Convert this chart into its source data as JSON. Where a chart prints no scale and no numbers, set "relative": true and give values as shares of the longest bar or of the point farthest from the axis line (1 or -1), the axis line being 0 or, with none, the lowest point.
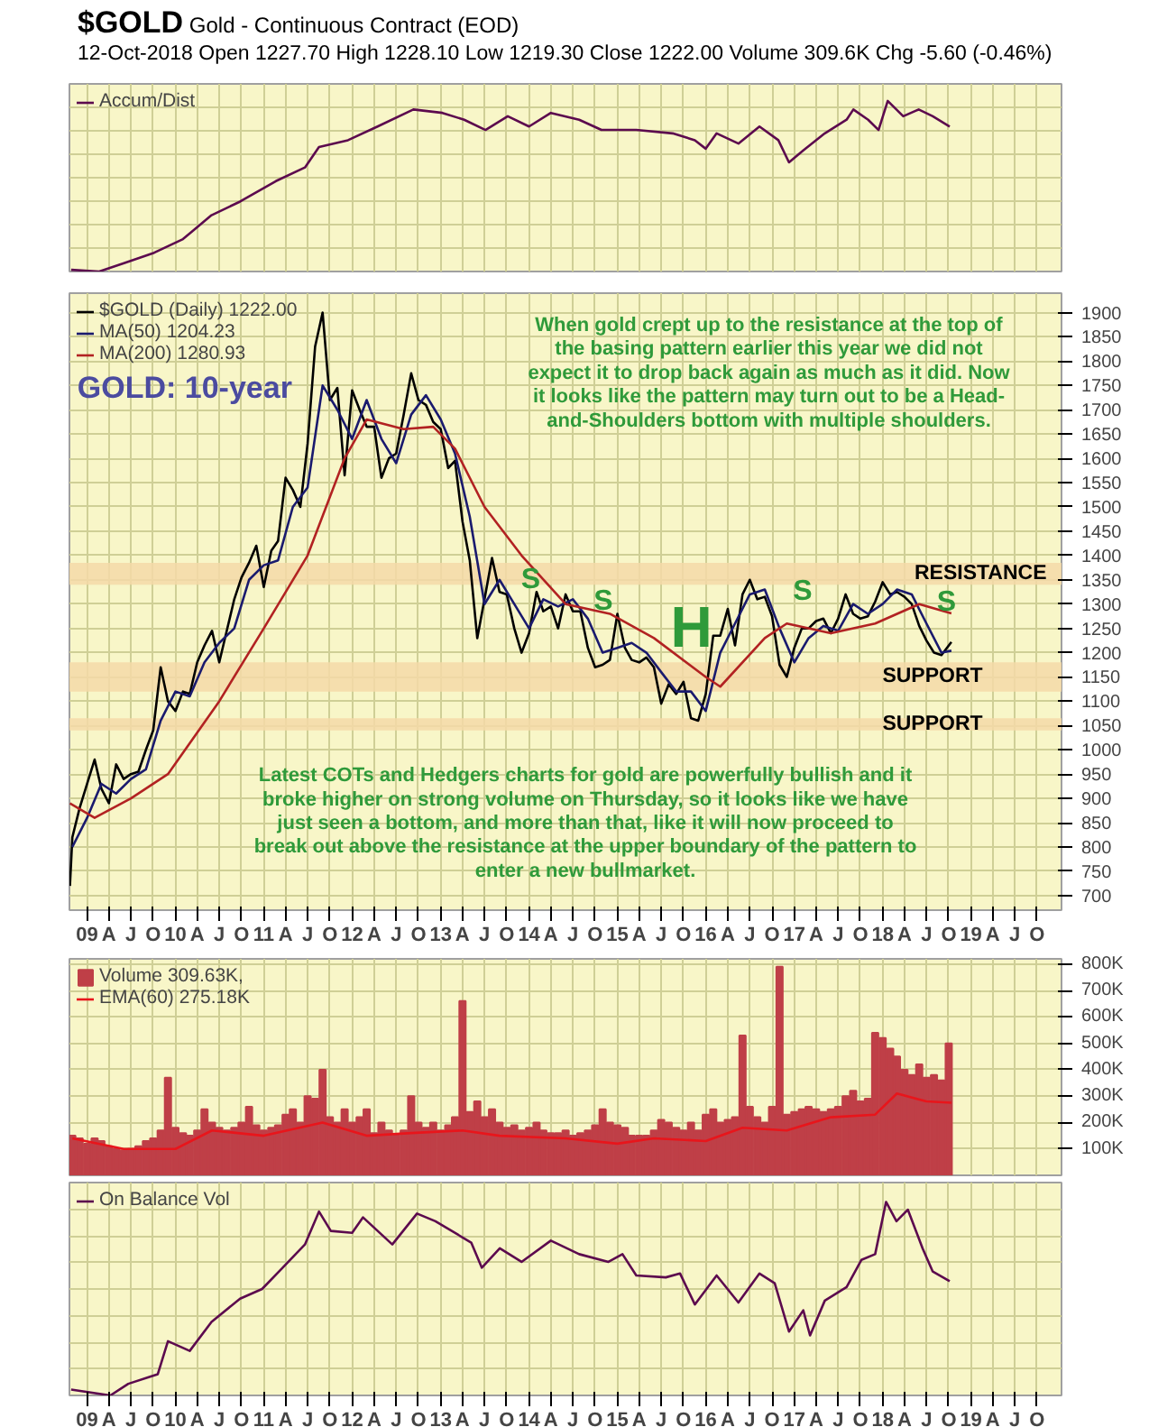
{
  "chart_data": [
    {
      "type": "line",
      "title": "$GOLD",
      "subtitle": "Gold - Continuous Contract (EOD)",
      "annotations": [
        "12-Oct-2018   Open 1227.70  High 1228.10  Low 1219.30  Close 1222.00  Volume 309.6K  Chg -5.60 (-0.46%)"
      ],
      "relative": true,
      "grid": true,
      "legend": "top left",
      "tick_labels": false,
      "xlim": [
        "2008-10-20",
        "2020-01-10"
      ],
      "xticks": [
        {
          "value": "2009-01",
          "label": "09"
        },
        {
          "value": "2009-04",
          "label": "A"
        },
        {
          "value": "2009-07",
          "label": "J"
        },
        {
          "value": "2009-10",
          "label": "O"
        },
        {
          "value": "2010-01",
          "label": "10"
        },
        {
          "value": "2010-04",
          "label": "A"
        },
        {
          "value": "2010-07",
          "label": "J"
        },
        {
          "value": "2010-10",
          "label": "O"
        },
        {
          "value": "2011-01",
          "label": "11"
        },
        {
          "value": "2011-04",
          "label": "A"
        },
        {
          "value": "2011-07",
          "label": "J"
        },
        {
          "value": "2011-10",
          "label": "O"
        },
        {
          "value": "2012-01",
          "label": "12"
        },
        {
          "value": "2012-04",
          "label": "A"
        },
        {
          "value": "2012-07",
          "label": "J"
        },
        {
          "value": "2012-10",
          "label": "O"
        },
        {
          "value": "2013-01",
          "label": "13"
        },
        {
          "value": "2013-04",
          "label": "A"
        },
        {
          "value": "2013-07",
          "label": "J"
        },
        {
          "value": "2013-10",
          "label": "O"
        },
        {
          "value": "2014-01",
          "label": "14"
        },
        {
          "value": "2014-04",
          "label": "A"
        },
        {
          "value": "2014-07",
          "label": "J"
        },
        {
          "value": "2014-10",
          "label": "O"
        },
        {
          "value": "2015-01",
          "label": "15"
        },
        {
          "value": "2015-04",
          "label": "A"
        },
        {
          "value": "2015-07",
          "label": "J"
        },
        {
          "value": "2015-10",
          "label": "O"
        },
        {
          "value": "2016-01",
          "label": "16"
        },
        {
          "value": "2016-04",
          "label": "A"
        },
        {
          "value": "2016-07",
          "label": "J"
        },
        {
          "value": "2016-10",
          "label": "O"
        },
        {
          "value": "2017-01",
          "label": "17"
        },
        {
          "value": "2017-04",
          "label": "A"
        },
        {
          "value": "2017-07",
          "label": "J"
        },
        {
          "value": "2017-10",
          "label": "O"
        },
        {
          "value": "2018-01",
          "label": "18"
        },
        {
          "value": "2018-04",
          "label": "A"
        },
        {
          "value": "2018-07",
          "label": "J"
        },
        {
          "value": "2018-10",
          "label": "O"
        },
        {
          "value": "2019-01",
          "label": "19"
        },
        {
          "value": "2019-04",
          "label": "A"
        },
        {
          "value": "2019-07",
          "label": "J"
        },
        {
          "value": "2019-10",
          "label": "O"
        }
      ],
      "series": [
        {
          "name": "Accum/Dist",
          "color": "#5c0a4e",
          "x": [
            "2008-10-27",
            "2009-02-20",
            "2009-06-05",
            "2009-10-05",
            "2010-02-01",
            "2010-05-30",
            "2010-09-25",
            "2011-02-20",
            "2011-06-20",
            "2011-08-17",
            "2011-12-15",
            "2012-04-15",
            "2012-09-10",
            "2013-01-08",
            "2013-04-08",
            "2013-07-05",
            "2013-10-05",
            "2014-01-01",
            "2014-04-01",
            "2014-07-27",
            "2014-10-27",
            "2015-03-20",
            "2015-08-17",
            "2015-11-17",
            "2016-01-01",
            "2016-02-15",
            "2016-05-15",
            "2016-08-10",
            "2016-10-27",
            "2016-12-10",
            "2017-02-07",
            "2017-05-07",
            "2017-08-05",
            "2017-09-02",
            "2017-11-02",
            "2017-12-15",
            "2018-01-22",
            "2018-03-27",
            "2018-05-30",
            "2018-07-27",
            "2018-10-05"
          ],
          "values": [
            0.01,
            0.0,
            0.05,
            0.11,
            0.19,
            0.33,
            0.41,
            0.53,
            0.61,
            0.73,
            0.77,
            0.85,
            0.95,
            0.93,
            0.89,
            0.83,
            0.91,
            0.85,
            0.93,
            0.89,
            0.83,
            0.83,
            0.81,
            0.77,
            0.72,
            0.81,
            0.75,
            0.85,
            0.77,
            0.64,
            0.71,
            0.81,
            0.89,
            0.95,
            0.89,
            0.83,
            1.0,
            0.91,
            0.95,
            0.91,
            0.85
          ]
        }
      ]
    },
    {
      "type": "line",
      "grid": true,
      "legend": "top left",
      "xlim": [
        "2008-10-20",
        "2020-01-10"
      ],
      "ylim": [
        670,
        1940
      ],
      "xticks": [
        {
          "value": "2009-01",
          "label": "09"
        },
        {
          "value": "2009-04",
          "label": "A"
        },
        {
          "value": "2009-07",
          "label": "J"
        },
        {
          "value": "2009-10",
          "label": "O"
        },
        {
          "value": "2010-01",
          "label": "10"
        },
        {
          "value": "2010-04",
          "label": "A"
        },
        {
          "value": "2010-07",
          "label": "J"
        },
        {
          "value": "2010-10",
          "label": "O"
        },
        {
          "value": "2011-01",
          "label": "11"
        },
        {
          "value": "2011-04",
          "label": "A"
        },
        {
          "value": "2011-07",
          "label": "J"
        },
        {
          "value": "2011-10",
          "label": "O"
        },
        {
          "value": "2012-01",
          "label": "12"
        },
        {
          "value": "2012-04",
          "label": "A"
        },
        {
          "value": "2012-07",
          "label": "J"
        },
        {
          "value": "2012-10",
          "label": "O"
        },
        {
          "value": "2013-01",
          "label": "13"
        },
        {
          "value": "2013-04",
          "label": "A"
        },
        {
          "value": "2013-07",
          "label": "J"
        },
        {
          "value": "2013-10",
          "label": "O"
        },
        {
          "value": "2014-01",
          "label": "14"
        },
        {
          "value": "2014-04",
          "label": "A"
        },
        {
          "value": "2014-07",
          "label": "J"
        },
        {
          "value": "2014-10",
          "label": "O"
        },
        {
          "value": "2015-01",
          "label": "15"
        },
        {
          "value": "2015-04",
          "label": "A"
        },
        {
          "value": "2015-07",
          "label": "J"
        },
        {
          "value": "2015-10",
          "label": "O"
        },
        {
          "value": "2016-01",
          "label": "16"
        },
        {
          "value": "2016-04",
          "label": "A"
        },
        {
          "value": "2016-07",
          "label": "J"
        },
        {
          "value": "2016-10",
          "label": "O"
        },
        {
          "value": "2017-01",
          "label": "17"
        },
        {
          "value": "2017-04",
          "label": "A"
        },
        {
          "value": "2017-07",
          "label": "J"
        },
        {
          "value": "2017-10",
          "label": "O"
        },
        {
          "value": "2018-01",
          "label": "18"
        },
        {
          "value": "2018-04",
          "label": "A"
        },
        {
          "value": "2018-07",
          "label": "J"
        },
        {
          "value": "2018-10",
          "label": "O"
        },
        {
          "value": "2019-01",
          "label": "19"
        },
        {
          "value": "2019-04",
          "label": "A"
        },
        {
          "value": "2019-07",
          "label": "J"
        },
        {
          "value": "2019-10",
          "label": "O"
        }
      ],
      "yticks": [
        700,
        750,
        800,
        850,
        900,
        950,
        1000,
        1050,
        1100,
        1150,
        1200,
        1250,
        1300,
        1350,
        1400,
        1450,
        1500,
        1550,
        1600,
        1650,
        1700,
        1750,
        1800,
        1850,
        1900
      ],
      "bands": [
        {
          "axis": "y",
          "from": 1340,
          "to": 1385,
          "label": "RESISTANCE",
          "color": "#f5d9a8"
        },
        {
          "axis": "y",
          "from": 1120,
          "to": 1180,
          "label": "SUPPORT",
          "color": "#f5d9a8"
        },
        {
          "axis": "y",
          "from": 1040,
          "to": 1065,
          "label": "SUPPORT",
          "color": "#f5d9a8"
        }
      ],
      "annotations": [
        "GOLD: 10-year",
        "When gold crept up to the resistance at the top of the basing pattern earlier this year we did not expect it to drop back again as much as it did. Now it looks like the pattern may turn out to be a Head-and-Shoulders bottom with multiple shoulders.",
        "Latest COTs and Hedgers charts for gold are powerfully bullish and it broke higher on strong volume on Thursday, so it looks like we have just seen a bottom, and more than that, like it will now proceed to break out above the resistance at the upper boundary of the pattern to enter a new bullmarket.",
        "S",
        "S",
        "H",
        "S",
        "S"
      ],
      "series": [
        {
          "name": "$GOLD (Daily) 1222.00",
          "color": "#000000",
          "x": [
            "2008-10-22",
            "2008-11",
            "2008-12",
            "2009-01",
            "2009-02",
            "2009-03",
            "2009-04",
            "2009-05",
            "2009-06",
            "2009-07",
            "2009-08",
            "2009-09",
            "2009-10",
            "2009-11",
            "2009-12",
            "2010-01",
            "2010-02",
            "2010-03",
            "2010-04",
            "2010-05",
            "2010-06",
            "2010-07",
            "2010-08",
            "2010-09",
            "2010-10",
            "2010-11",
            "2010-12",
            "2011-01",
            "2011-02",
            "2011-03",
            "2011-04",
            "2011-05",
            "2011-06",
            "2011-07",
            "2011-08",
            "2011-09",
            "2011-10",
            "2011-11",
            "2011-12",
            "2012-01",
            "2012-02",
            "2012-03",
            "2012-04",
            "2012-05",
            "2012-06",
            "2012-07",
            "2012-08",
            "2012-09",
            "2012-10",
            "2012-11",
            "2012-12",
            "2013-01",
            "2013-02",
            "2013-03",
            "2013-04",
            "2013-05",
            "2013-06",
            "2013-07",
            "2013-08",
            "2013-09",
            "2013-10",
            "2013-11",
            "2013-12",
            "2014-01",
            "2014-02",
            "2014-03",
            "2014-04",
            "2014-05",
            "2014-06",
            "2014-07",
            "2014-08",
            "2014-09",
            "2014-10",
            "2014-11",
            "2014-12",
            "2015-01",
            "2015-02",
            "2015-03",
            "2015-04",
            "2015-05",
            "2015-06",
            "2015-07",
            "2015-08",
            "2015-09",
            "2015-10",
            "2015-11",
            "2015-12",
            "2016-01",
            "2016-02",
            "2016-03",
            "2016-04",
            "2016-05",
            "2016-06",
            "2016-07",
            "2016-08",
            "2016-09",
            "2016-10",
            "2016-11",
            "2016-12",
            "2017-01",
            "2017-02",
            "2017-03",
            "2017-04",
            "2017-05",
            "2017-06",
            "2017-07",
            "2017-08",
            "2017-09",
            "2017-10",
            "2017-11",
            "2017-12",
            "2018-01",
            "2018-02",
            "2018-03",
            "2018-04",
            "2018-05",
            "2018-06",
            "2018-07",
            "2018-08",
            "2018-09",
            "2018-10-12"
          ],
          "values": [
            720,
            820,
            880,
            930,
            980,
            920,
            890,
            970,
            940,
            950,
            955,
            1000,
            1040,
            1170,
            1100,
            1080,
            1120,
            1115,
            1180,
            1215,
            1245,
            1180,
            1245,
            1310,
            1355,
            1385,
            1420,
            1335,
            1410,
            1430,
            1560,
            1535,
            1500,
            1630,
            1830,
            1900,
            1720,
            1745,
            1565,
            1740,
            1700,
            1665,
            1665,
            1560,
            1600,
            1610,
            1690,
            1775,
            1720,
            1710,
            1675,
            1660,
            1580,
            1595,
            1470,
            1390,
            1230,
            1310,
            1395,
            1325,
            1320,
            1250,
            1200,
            1240,
            1325,
            1285,
            1295,
            1250,
            1320,
            1285,
            1285,
            1210,
            1170,
            1175,
            1185,
            1280,
            1210,
            1185,
            1180,
            1190,
            1170,
            1095,
            1135,
            1115,
            1140,
            1065,
            1060,
            1115,
            1235,
            1235,
            1290,
            1215,
            1320,
            1350,
            1310,
            1315,
            1275,
            1175,
            1150,
            1210,
            1250,
            1250,
            1265,
            1270,
            1240,
            1270,
            1320,
            1280,
            1270,
            1275,
            1305,
            1345,
            1320,
            1325,
            1315,
            1300,
            1255,
            1225,
            1200,
            1195,
            1222
          ]
        },
        {
          "name": "MA(50) 1204.23",
          "color": "#1a1a6e",
          "x": [
            "2008-11",
            "2009-01",
            "2009-03",
            "2009-05",
            "2009-07",
            "2009-09",
            "2009-11",
            "2010-01",
            "2010-03",
            "2010-05",
            "2010-07",
            "2010-09",
            "2010-11",
            "2011-01",
            "2011-03",
            "2011-05",
            "2011-07",
            "2011-09",
            "2011-11",
            "2012-01",
            "2012-03",
            "2012-05",
            "2012-07",
            "2012-09",
            "2012-11",
            "2013-01",
            "2013-03",
            "2013-05",
            "2013-07",
            "2013-09",
            "2013-11",
            "2014-01",
            "2014-03",
            "2014-05",
            "2014-07",
            "2014-09",
            "2014-11",
            "2015-01",
            "2015-03",
            "2015-05",
            "2015-07",
            "2015-09",
            "2015-11",
            "2016-01",
            "2016-03",
            "2016-05",
            "2016-07",
            "2016-09",
            "2016-11",
            "2017-01",
            "2017-03",
            "2017-05",
            "2017-07",
            "2017-09",
            "2017-11",
            "2018-01",
            "2018-03",
            "2018-05",
            "2018-07",
            "2018-09",
            "2018-10-12"
          ],
          "values": [
            800,
            860,
            930,
            910,
            940,
            960,
            1060,
            1120,
            1110,
            1180,
            1220,
            1250,
            1350,
            1380,
            1390,
            1500,
            1540,
            1750,
            1700,
            1640,
            1720,
            1640,
            1590,
            1690,
            1730,
            1680,
            1610,
            1480,
            1300,
            1350,
            1300,
            1250,
            1310,
            1295,
            1310,
            1270,
            1200,
            1210,
            1220,
            1200,
            1160,
            1120,
            1120,
            1080,
            1200,
            1260,
            1320,
            1330,
            1250,
            1180,
            1230,
            1255,
            1245,
            1300,
            1280,
            1300,
            1330,
            1320,
            1260,
            1200,
            1204
          ]
        },
        {
          "name": "MA(200) 1280.93",
          "color": "#b22222",
          "x": [
            "2008-10-22",
            "2009-02",
            "2009-07",
            "2009-12",
            "2010-07",
            "2011-01",
            "2011-07",
            "2011-12",
            "2012-03",
            "2012-08",
            "2012-12",
            "2013-03",
            "2013-07",
            "2013-12",
            "2014-06",
            "2014-12",
            "2015-06",
            "2016-01",
            "2016-03",
            "2016-09",
            "2016-12",
            "2017-06",
            "2017-12",
            "2018-06",
            "2018-10-12"
          ],
          "values": [
            890,
            860,
            900,
            950,
            1100,
            1250,
            1400,
            1600,
            1680,
            1660,
            1665,
            1620,
            1500,
            1400,
            1300,
            1280,
            1230,
            1150,
            1130,
            1230,
            1260,
            1240,
            1260,
            1300,
            1281
          ]
        }
      ]
    },
    {
      "type": "bar",
      "grid": true,
      "legend": "top left",
      "tick_labels": "y",
      "xlim": [
        "2008-10-20",
        "2020-01-10"
      ],
      "ylim": [
        0,
        820000
      ],
      "xticks": [
        {
          "value": "2009-01",
          "label": "09"
        },
        {
          "value": "2009-04",
          "label": "A"
        },
        {
          "value": "2009-07",
          "label": "J"
        },
        {
          "value": "2009-10",
          "label": "O"
        },
        {
          "value": "2010-01",
          "label": "10"
        },
        {
          "value": "2010-04",
          "label": "A"
        },
        {
          "value": "2010-07",
          "label": "J"
        },
        {
          "value": "2010-10",
          "label": "O"
        },
        {
          "value": "2011-01",
          "label": "11"
        },
        {
          "value": "2011-04",
          "label": "A"
        },
        {
          "value": "2011-07",
          "label": "J"
        },
        {
          "value": "2011-10",
          "label": "O"
        },
        {
          "value": "2012-01",
          "label": "12"
        },
        {
          "value": "2012-04",
          "label": "A"
        },
        {
          "value": "2012-07",
          "label": "J"
        },
        {
          "value": "2012-10",
          "label": "O"
        },
        {
          "value": "2013-01",
          "label": "13"
        },
        {
          "value": "2013-04",
          "label": "A"
        },
        {
          "value": "2013-07",
          "label": "J"
        },
        {
          "value": "2013-10",
          "label": "O"
        },
        {
          "value": "2014-01",
          "label": "14"
        },
        {
          "value": "2014-04",
          "label": "A"
        },
        {
          "value": "2014-07",
          "label": "J"
        },
        {
          "value": "2014-10",
          "label": "O"
        },
        {
          "value": "2015-01",
          "label": "15"
        },
        {
          "value": "2015-04",
          "label": "A"
        },
        {
          "value": "2015-07",
          "label": "J"
        },
        {
          "value": "2015-10",
          "label": "O"
        },
        {
          "value": "2016-01",
          "label": "16"
        },
        {
          "value": "2016-04",
          "label": "A"
        },
        {
          "value": "2016-07",
          "label": "J"
        },
        {
          "value": "2016-10",
          "label": "O"
        },
        {
          "value": "2017-01",
          "label": "17"
        },
        {
          "value": "2017-04",
          "label": "A"
        },
        {
          "value": "2017-07",
          "label": "J"
        },
        {
          "value": "2017-10",
          "label": "O"
        },
        {
          "value": "2018-01",
          "label": "18"
        },
        {
          "value": "2018-04",
          "label": "A"
        },
        {
          "value": "2018-07",
          "label": "J"
        },
        {
          "value": "2018-10",
          "label": "O"
        },
        {
          "value": "2019-01",
          "label": "19"
        },
        {
          "value": "2019-04",
          "label": "A"
        },
        {
          "value": "2019-07",
          "label": "J"
        },
        {
          "value": "2019-10",
          "label": "O"
        }
      ],
      "yticks": [
        {
          "value": 100000,
          "label": "100K"
        },
        {
          "value": 200000,
          "label": "200K"
        },
        {
          "value": 300000,
          "label": "300K"
        },
        {
          "value": 400000,
          "label": "400K"
        },
        {
          "value": 500000,
          "label": "500K"
        },
        {
          "value": 600000,
          "label": "600K"
        },
        {
          "value": 700000,
          "label": "700K"
        },
        {
          "value": 800000,
          "label": "800K"
        }
      ],
      "series": [
        {
          "name": "Volume 309.63K,",
          "color": "#bf3f47",
          "x": [
            "2008-11",
            "2008-12",
            "2009-01",
            "2009-02",
            "2009-03",
            "2009-04",
            "2009-05",
            "2009-06",
            "2009-07",
            "2009-08",
            "2009-09",
            "2009-10",
            "2009-11",
            "2009-12",
            "2010-01",
            "2010-02",
            "2010-03",
            "2010-04",
            "2010-05",
            "2010-06",
            "2010-07",
            "2010-08",
            "2010-09",
            "2010-10",
            "2010-11",
            "2010-12",
            "2011-01",
            "2011-02",
            "2011-03",
            "2011-04",
            "2011-05",
            "2011-06",
            "2011-07",
            "2011-08",
            "2011-09",
            "2011-10",
            "2011-11",
            "2011-12",
            "2012-01",
            "2012-02",
            "2012-03",
            "2012-04",
            "2012-05",
            "2012-06",
            "2012-07",
            "2012-08",
            "2012-09",
            "2012-10",
            "2012-11",
            "2012-12",
            "2013-01",
            "2013-02",
            "2013-03",
            "2013-04",
            "2013-05",
            "2013-06",
            "2013-07",
            "2013-08",
            "2013-09",
            "2013-10",
            "2013-11",
            "2013-12",
            "2014-01",
            "2014-02",
            "2014-03",
            "2014-04",
            "2014-05",
            "2014-06",
            "2014-07",
            "2014-08",
            "2014-09",
            "2014-10",
            "2014-11",
            "2014-12",
            "2015-01",
            "2015-02",
            "2015-03",
            "2015-04",
            "2015-05",
            "2015-06",
            "2015-07",
            "2015-08",
            "2015-09",
            "2015-10",
            "2015-11",
            "2015-12",
            "2016-01",
            "2016-02",
            "2016-03",
            "2016-04",
            "2016-05",
            "2016-06",
            "2016-07",
            "2016-08",
            "2016-09",
            "2016-10",
            "2016-11",
            "2016-12",
            "2017-01",
            "2017-02",
            "2017-03",
            "2017-04",
            "2017-05",
            "2017-06",
            "2017-07",
            "2017-08",
            "2017-09",
            "2017-10",
            "2017-11",
            "2017-12",
            "2018-01",
            "2018-02",
            "2018-03",
            "2018-04",
            "2018-05",
            "2018-06",
            "2018-07",
            "2018-08",
            "2018-09",
            "2018-10"
          ],
          "values": [
            150000,
            140000,
            120000,
            140000,
            130000,
            110000,
            100000,
            95000,
            100000,
            110000,
            130000,
            140000,
            170000,
            370000,
            180000,
            160000,
            150000,
            170000,
            250000,
            200000,
            180000,
            170000,
            180000,
            200000,
            260000,
            190000,
            170000,
            180000,
            190000,
            230000,
            250000,
            200000,
            300000,
            290000,
            400000,
            220000,
            200000,
            250000,
            200000,
            220000,
            250000,
            160000,
            200000,
            170000,
            150000,
            170000,
            300000,
            200000,
            180000,
            200000,
            170000,
            190000,
            220000,
            660000,
            240000,
            280000,
            220000,
            250000,
            200000,
            180000,
            190000,
            170000,
            180000,
            200000,
            170000,
            160000,
            160000,
            170000,
            150000,
            160000,
            170000,
            190000,
            250000,
            200000,
            190000,
            180000,
            150000,
            150000,
            150000,
            170000,
            210000,
            200000,
            180000,
            170000,
            200000,
            170000,
            230000,
            250000,
            200000,
            210000,
            220000,
            530000,
            260000,
            220000,
            200000,
            260000,
            790000,
            230000,
            240000,
            250000,
            260000,
            250000,
            240000,
            250000,
            260000,
            300000,
            320000,
            280000,
            290000,
            540000,
            520000,
            480000,
            450000,
            400000,
            380000,
            420000,
            370000,
            380000,
            360000,
            500000
          ]
        },
        {
          "name": "EMA(60) 275.18K",
          "type": "line",
          "color": "#e8151b",
          "x": [
            "2008-11",
            "2009-06",
            "2010-01",
            "2010-06",
            "2011-01",
            "2011-09",
            "2012-03",
            "2012-09",
            "2013-04",
            "2013-09",
            "2014-06",
            "2015-01",
            "2015-06",
            "2016-01",
            "2016-06",
            "2016-12",
            "2017-06",
            "2017-12",
            "2018-03",
            "2018-07",
            "2018-10-12"
          ],
          "values": [
            140000,
            100000,
            100000,
            170000,
            150000,
            200000,
            150000,
            160000,
            170000,
            150000,
            140000,
            120000,
            140000,
            130000,
            180000,
            170000,
            220000,
            230000,
            310000,
            280000,
            275000
          ]
        }
      ]
    },
    {
      "type": "line",
      "relative": true,
      "grid": true,
      "legend": "top left",
      "tick_labels": "x",
      "xlim": [
        "2008-10-20",
        "2020-01-10"
      ],
      "xticks": [
        {
          "value": "2009-01",
          "label": "09"
        },
        {
          "value": "2009-04",
          "label": "A"
        },
        {
          "value": "2009-07",
          "label": "J"
        },
        {
          "value": "2009-10",
          "label": "O"
        },
        {
          "value": "2010-01",
          "label": "10"
        },
        {
          "value": "2010-04",
          "label": "A"
        },
        {
          "value": "2010-07",
          "label": "J"
        },
        {
          "value": "2010-10",
          "label": "O"
        },
        {
          "value": "2011-01",
          "label": "11"
        },
        {
          "value": "2011-04",
          "label": "A"
        },
        {
          "value": "2011-07",
          "label": "J"
        },
        {
          "value": "2011-10",
          "label": "O"
        },
        {
          "value": "2012-01",
          "label": "12"
        },
        {
          "value": "2012-04",
          "label": "A"
        },
        {
          "value": "2012-07",
          "label": "J"
        },
        {
          "value": "2012-10",
          "label": "O"
        },
        {
          "value": "2013-01",
          "label": "13"
        },
        {
          "value": "2013-04",
          "label": "A"
        },
        {
          "value": "2013-07",
          "label": "J"
        },
        {
          "value": "2013-10",
          "label": "O"
        },
        {
          "value": "2014-01",
          "label": "14"
        },
        {
          "value": "2014-04",
          "label": "A"
        },
        {
          "value": "2014-07",
          "label": "J"
        },
        {
          "value": "2014-10",
          "label": "O"
        },
        {
          "value": "2015-01",
          "label": "15"
        },
        {
          "value": "2015-04",
          "label": "A"
        },
        {
          "value": "2015-07",
          "label": "J"
        },
        {
          "value": "2015-10",
          "label": "O"
        },
        {
          "value": "2016-01",
          "label": "16"
        },
        {
          "value": "2016-04",
          "label": "A"
        },
        {
          "value": "2016-07",
          "label": "J"
        },
        {
          "value": "2016-10",
          "label": "O"
        },
        {
          "value": "2017-01",
          "label": "17"
        },
        {
          "value": "2017-04",
          "label": "A"
        },
        {
          "value": "2017-07",
          "label": "J"
        },
        {
          "value": "2017-10",
          "label": "O"
        },
        {
          "value": "2018-01",
          "label": "18"
        },
        {
          "value": "2018-04",
          "label": "A"
        },
        {
          "value": "2018-07",
          "label": "J"
        },
        {
          "value": "2018-10",
          "label": "O"
        },
        {
          "value": "2019-01",
          "label": "19"
        },
        {
          "value": "2019-04",
          "label": "A"
        },
        {
          "value": "2019-07",
          "label": "J"
        },
        {
          "value": "2019-10",
          "label": "O"
        }
      ],
      "series": [
        {
          "name": "On Balance Vol",
          "color": "#5c0a4e",
          "x": [
            "2008-10-27",
            "2009-04-07",
            "2009-06-20",
            "2009-10-20",
            "2009-12-01",
            "2010-03-01",
            "2010-05-30",
            "2010-09-25",
            "2010-12-25",
            "2011-03-20",
            "2011-06-20",
            "2011-08-17",
            "2011-10-05",
            "2012-01-01",
            "2012-02-15",
            "2012-06-15",
            "2012-09-25",
            "2012-12-10",
            "2013-05-07",
            "2013-06-20",
            "2013-09-02",
            "2013-12-01",
            "2014-04-01",
            "2014-07-27",
            "2014-11-25",
            "2015-01-22",
            "2015-03-20",
            "2015-07-20",
            "2015-09-17",
            "2015-11-17",
            "2016-02-15",
            "2016-05-15",
            "2016-08-10",
            "2016-10-12",
            "2016-12-10",
            "2017-02-07",
            "2017-03-07",
            "2017-05-07",
            "2017-08-05",
            "2017-10-05",
            "2017-12-01",
            "2018-01-15",
            "2018-02-27",
            "2018-04-15",
            "2018-06-15",
            "2018-07-27",
            "2018-10-05"
          ],
          "values": [
            0.03,
            0.0,
            0.06,
            0.11,
            0.28,
            0.23,
            0.38,
            0.5,
            0.55,
            0.66,
            0.78,
            0.95,
            0.85,
            0.84,
            0.92,
            0.78,
            0.94,
            0.9,
            0.79,
            0.66,
            0.76,
            0.69,
            0.8,
            0.73,
            0.69,
            0.73,
            0.62,
            0.61,
            0.63,
            0.47,
            0.62,
            0.48,
            0.63,
            0.58,
            0.33,
            0.44,
            0.31,
            0.49,
            0.56,
            0.7,
            0.73,
            1.0,
            0.9,
            0.96,
            0.76,
            0.64,
            0.59
          ]
        }
      ]
    }
  ]
}
